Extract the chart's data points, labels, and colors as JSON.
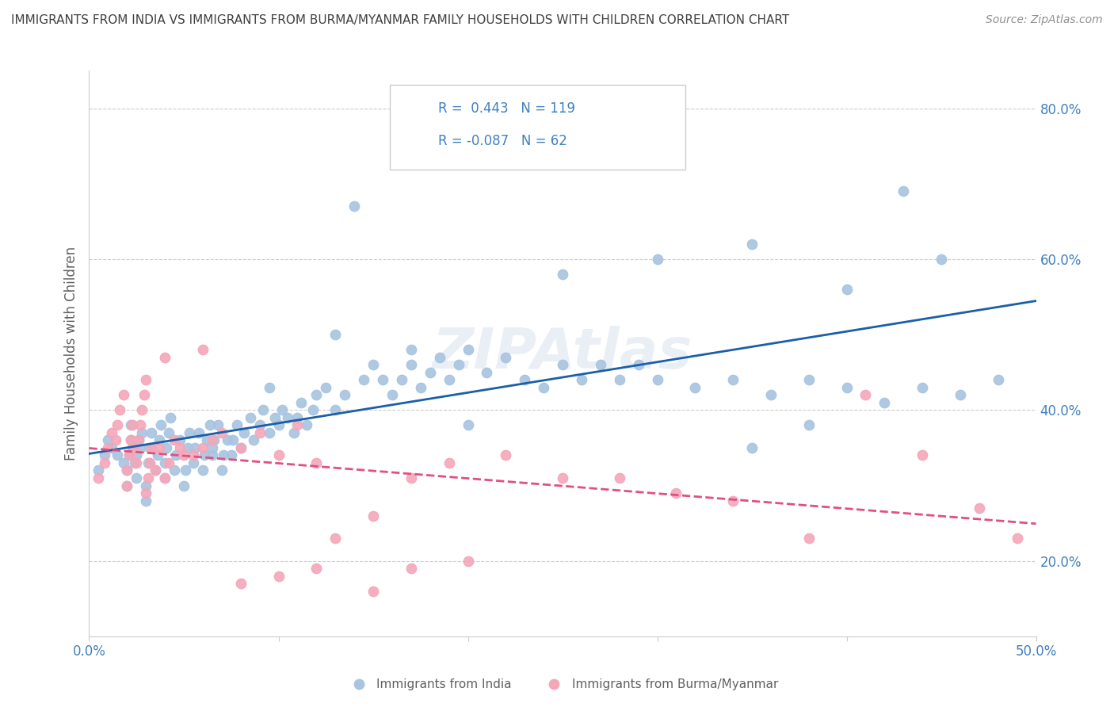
{
  "title": "IMMIGRANTS FROM INDIA VS IMMIGRANTS FROM BURMA/MYANMAR FAMILY HOUSEHOLDS WITH CHILDREN CORRELATION CHART",
  "source": "Source: ZipAtlas.com",
  "ylabel": "Family Households with Children",
  "xlim": [
    0.0,
    0.5
  ],
  "ylim": [
    0.1,
    0.85
  ],
  "xticks": [
    0.0,
    0.1,
    0.2,
    0.3,
    0.4,
    0.5
  ],
  "xticklabels": [
    "0.0%",
    "",
    "",
    "",
    "",
    "50.0%"
  ],
  "yticks": [
    0.2,
    0.4,
    0.6,
    0.8
  ],
  "yticklabels": [
    "20.0%",
    "40.0%",
    "60.0%",
    "80.0%"
  ],
  "legend_labels": [
    "Immigrants from India",
    "Immigrants from Burma/Myanmar"
  ],
  "r_india": 0.443,
  "n_india": 119,
  "r_burma": -0.087,
  "n_burma": 62,
  "color_india": "#a8c4e0",
  "color_burma": "#f4a7b9",
  "line_color_india": "#1a5fa8",
  "line_color_burma": "#e05080",
  "background_color": "#ffffff",
  "grid_color": "#cccccc",
  "title_color": "#404040",
  "label_color": "#4080c0",
  "india_x": [
    0.005,
    0.008,
    0.01,
    0.012,
    0.015,
    0.018,
    0.02,
    0.02,
    0.021,
    0.022,
    0.022,
    0.023,
    0.024,
    0.025,
    0.025,
    0.026,
    0.027,
    0.028,
    0.03,
    0.03,
    0.031,
    0.032,
    0.033,
    0.035,
    0.036,
    0.037,
    0.038,
    0.04,
    0.04,
    0.041,
    0.042,
    0.043,
    0.045,
    0.046,
    0.048,
    0.05,
    0.051,
    0.052,
    0.053,
    0.055,
    0.056,
    0.058,
    0.06,
    0.061,
    0.062,
    0.064,
    0.065,
    0.066,
    0.068,
    0.07,
    0.071,
    0.073,
    0.075,
    0.076,
    0.078,
    0.08,
    0.082,
    0.085,
    0.087,
    0.09,
    0.092,
    0.095,
    0.098,
    0.1,
    0.102,
    0.105,
    0.108,
    0.11,
    0.112,
    0.115,
    0.118,
    0.12,
    0.125,
    0.13,
    0.135,
    0.14,
    0.145,
    0.15,
    0.155,
    0.16,
    0.165,
    0.17,
    0.175,
    0.18,
    0.185,
    0.19,
    0.195,
    0.2,
    0.21,
    0.22,
    0.23,
    0.24,
    0.25,
    0.26,
    0.27,
    0.28,
    0.29,
    0.3,
    0.32,
    0.34,
    0.36,
    0.38,
    0.4,
    0.42,
    0.44,
    0.46,
    0.48,
    0.25,
    0.3,
    0.35,
    0.4,
    0.45,
    0.43,
    0.38,
    0.35,
    0.2,
    0.17,
    0.13,
    0.095,
    0.065
  ],
  "india_y": [
    0.32,
    0.34,
    0.36,
    0.35,
    0.34,
    0.33,
    0.3,
    0.32,
    0.34,
    0.36,
    0.38,
    0.35,
    0.33,
    0.31,
    0.34,
    0.36,
    0.35,
    0.37,
    0.28,
    0.3,
    0.33,
    0.35,
    0.37,
    0.32,
    0.34,
    0.36,
    0.38,
    0.31,
    0.33,
    0.35,
    0.37,
    0.39,
    0.32,
    0.34,
    0.36,
    0.3,
    0.32,
    0.35,
    0.37,
    0.33,
    0.35,
    0.37,
    0.32,
    0.34,
    0.36,
    0.38,
    0.34,
    0.36,
    0.38,
    0.32,
    0.34,
    0.36,
    0.34,
    0.36,
    0.38,
    0.35,
    0.37,
    0.39,
    0.36,
    0.38,
    0.4,
    0.37,
    0.39,
    0.38,
    0.4,
    0.39,
    0.37,
    0.39,
    0.41,
    0.38,
    0.4,
    0.42,
    0.43,
    0.4,
    0.42,
    0.67,
    0.44,
    0.46,
    0.44,
    0.42,
    0.44,
    0.46,
    0.43,
    0.45,
    0.47,
    0.44,
    0.46,
    0.48,
    0.45,
    0.47,
    0.44,
    0.43,
    0.46,
    0.44,
    0.46,
    0.44,
    0.46,
    0.44,
    0.43,
    0.44,
    0.42,
    0.44,
    0.43,
    0.41,
    0.43,
    0.42,
    0.44,
    0.58,
    0.6,
    0.62,
    0.56,
    0.6,
    0.69,
    0.38,
    0.35,
    0.38,
    0.48,
    0.5,
    0.43,
    0.35
  ],
  "burma_x": [
    0.005,
    0.008,
    0.01,
    0.012,
    0.014,
    0.015,
    0.016,
    0.018,
    0.02,
    0.02,
    0.021,
    0.022,
    0.023,
    0.024,
    0.025,
    0.026,
    0.027,
    0.028,
    0.029,
    0.03,
    0.03,
    0.031,
    0.032,
    0.033,
    0.035,
    0.037,
    0.04,
    0.042,
    0.045,
    0.048,
    0.05,
    0.055,
    0.06,
    0.065,
    0.07,
    0.08,
    0.09,
    0.1,
    0.11,
    0.12,
    0.13,
    0.15,
    0.17,
    0.19,
    0.22,
    0.25,
    0.28,
    0.31,
    0.34,
    0.38,
    0.41,
    0.44,
    0.47,
    0.49,
    0.04,
    0.06,
    0.08,
    0.1,
    0.12,
    0.15,
    0.17,
    0.2
  ],
  "burma_y": [
    0.31,
    0.33,
    0.35,
    0.37,
    0.36,
    0.38,
    0.4,
    0.42,
    0.3,
    0.32,
    0.34,
    0.36,
    0.38,
    0.35,
    0.33,
    0.36,
    0.38,
    0.4,
    0.42,
    0.44,
    0.29,
    0.31,
    0.33,
    0.35,
    0.32,
    0.35,
    0.31,
    0.33,
    0.36,
    0.35,
    0.34,
    0.34,
    0.35,
    0.36,
    0.37,
    0.35,
    0.37,
    0.34,
    0.38,
    0.33,
    0.23,
    0.26,
    0.31,
    0.33,
    0.34,
    0.31,
    0.31,
    0.29,
    0.28,
    0.23,
    0.42,
    0.34,
    0.27,
    0.23,
    0.47,
    0.48,
    0.17,
    0.18,
    0.19,
    0.16,
    0.19,
    0.2
  ]
}
